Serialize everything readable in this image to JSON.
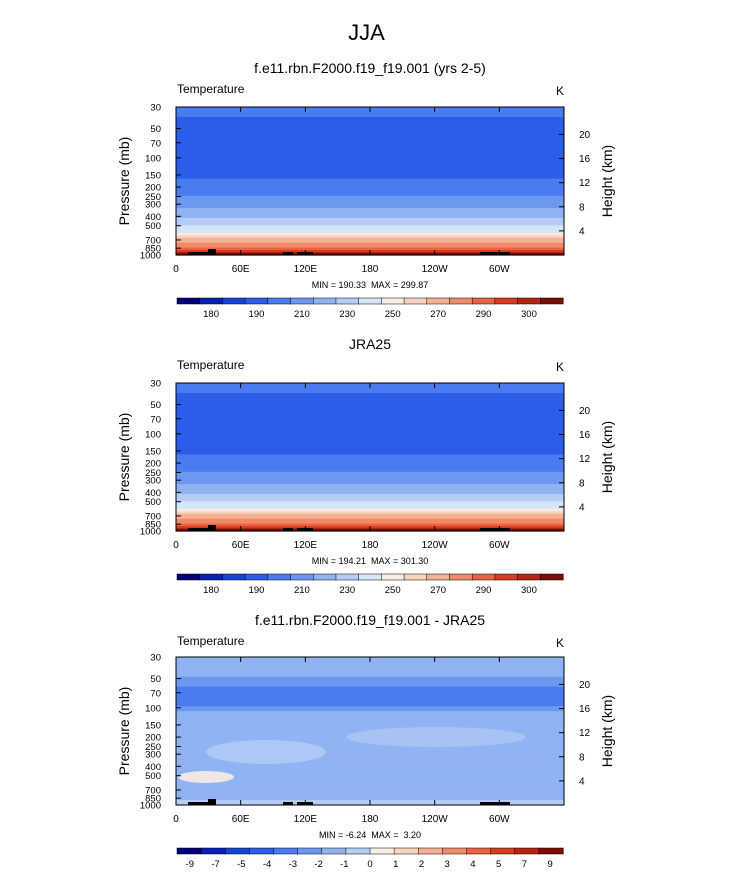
{
  "page_title": "JJA",
  "chart_data": [
    {
      "type": "heatmap",
      "title": "f.e11.rbn.F2000.f19_f19.001 (yrs 2-5)",
      "field_label": "Temperature",
      "units_label": "K",
      "ylabel": "Pressure (mb)",
      "ylabel_right": "Height (km)",
      "x_ticks": [
        "0",
        "60E",
        "120E",
        "180",
        "120W",
        "60W"
      ],
      "y_ticks": [
        "30",
        "50",
        "70",
        "100",
        "150",
        "200",
        "250",
        "300",
        "400",
        "500",
        "700",
        "850",
        "1000"
      ],
      "height_ticks": [
        "20",
        "16",
        "12",
        "8",
        "4"
      ],
      "stats": "MIN = 190.33  MAX = 299.87",
      "colorbar_labels": [
        "180",
        "190",
        "210",
        "230",
        "250",
        "270",
        "290",
        "300"
      ],
      "ylim": [
        1000,
        30
      ],
      "xlim": [
        0,
        360
      ]
    },
    {
      "type": "heatmap",
      "title": "JRA25",
      "field_label": "Temperature",
      "units_label": "K",
      "ylabel": "Pressure (mb)",
      "ylabel_right": "Height (km)",
      "x_ticks": [
        "0",
        "60E",
        "120E",
        "180",
        "120W",
        "60W"
      ],
      "y_ticks": [
        "30",
        "50",
        "70",
        "100",
        "150",
        "200",
        "250",
        "300",
        "400",
        "500",
        "700",
        "850",
        "1000"
      ],
      "height_ticks": [
        "20",
        "16",
        "12",
        "8",
        "4"
      ],
      "stats": "MIN = 194.21  MAX = 301.30",
      "colorbar_labels": [
        "180",
        "190",
        "210",
        "230",
        "250",
        "270",
        "290",
        "300"
      ],
      "ylim": [
        1000,
        30
      ],
      "xlim": [
        0,
        360
      ]
    },
    {
      "type": "heatmap",
      "title": "f.e11.rbn.F2000.f19_f19.001 - JRA25",
      "field_label": "Temperature",
      "units_label": "K",
      "ylabel": "Pressure (mb)",
      "ylabel_right": "Height (km)",
      "x_ticks": [
        "0",
        "60E",
        "120E",
        "180",
        "120W",
        "60W"
      ],
      "y_ticks": [
        "30",
        "50",
        "70",
        "100",
        "150",
        "200",
        "250",
        "300",
        "400",
        "500",
        "700",
        "850",
        "1000"
      ],
      "height_ticks": [
        "20",
        "16",
        "12",
        "8",
        "4"
      ],
      "stats": "MIN = -6.24  MAX =  3.20",
      "colorbar_labels": [
        "-9",
        "-7",
        "-5",
        "-4",
        "-3",
        "-2",
        "-1",
        "0",
        "1",
        "2",
        "3",
        "4",
        "5",
        "7",
        "9"
      ],
      "ylim": [
        1000,
        30
      ],
      "xlim": [
        0,
        360
      ]
    }
  ],
  "colors": {
    "abs_palette": [
      "#00007a",
      "#0a1fb4",
      "#1543d6",
      "#2a5ee8",
      "#4a7cf0",
      "#6d98f2",
      "#90b3f3",
      "#b5cdf5",
      "#d6e4f7",
      "#f7ece4",
      "#f8d3c0",
      "#f5b095",
      "#f08a69",
      "#e96241",
      "#d83c1f",
      "#b52612",
      "#7a0d05"
    ],
    "diff_palette": [
      "#00007a",
      "#0a1fb4",
      "#1543d6",
      "#2a5ee8",
      "#4a7cf0",
      "#6d98f2",
      "#90b3f3",
      "#b5cdf5",
      "#f7ece4",
      "#f8d3c0",
      "#f5b095",
      "#f08a69",
      "#e96241",
      "#d83c1f",
      "#b52612",
      "#7a0d05"
    ],
    "topography": "#000000"
  }
}
